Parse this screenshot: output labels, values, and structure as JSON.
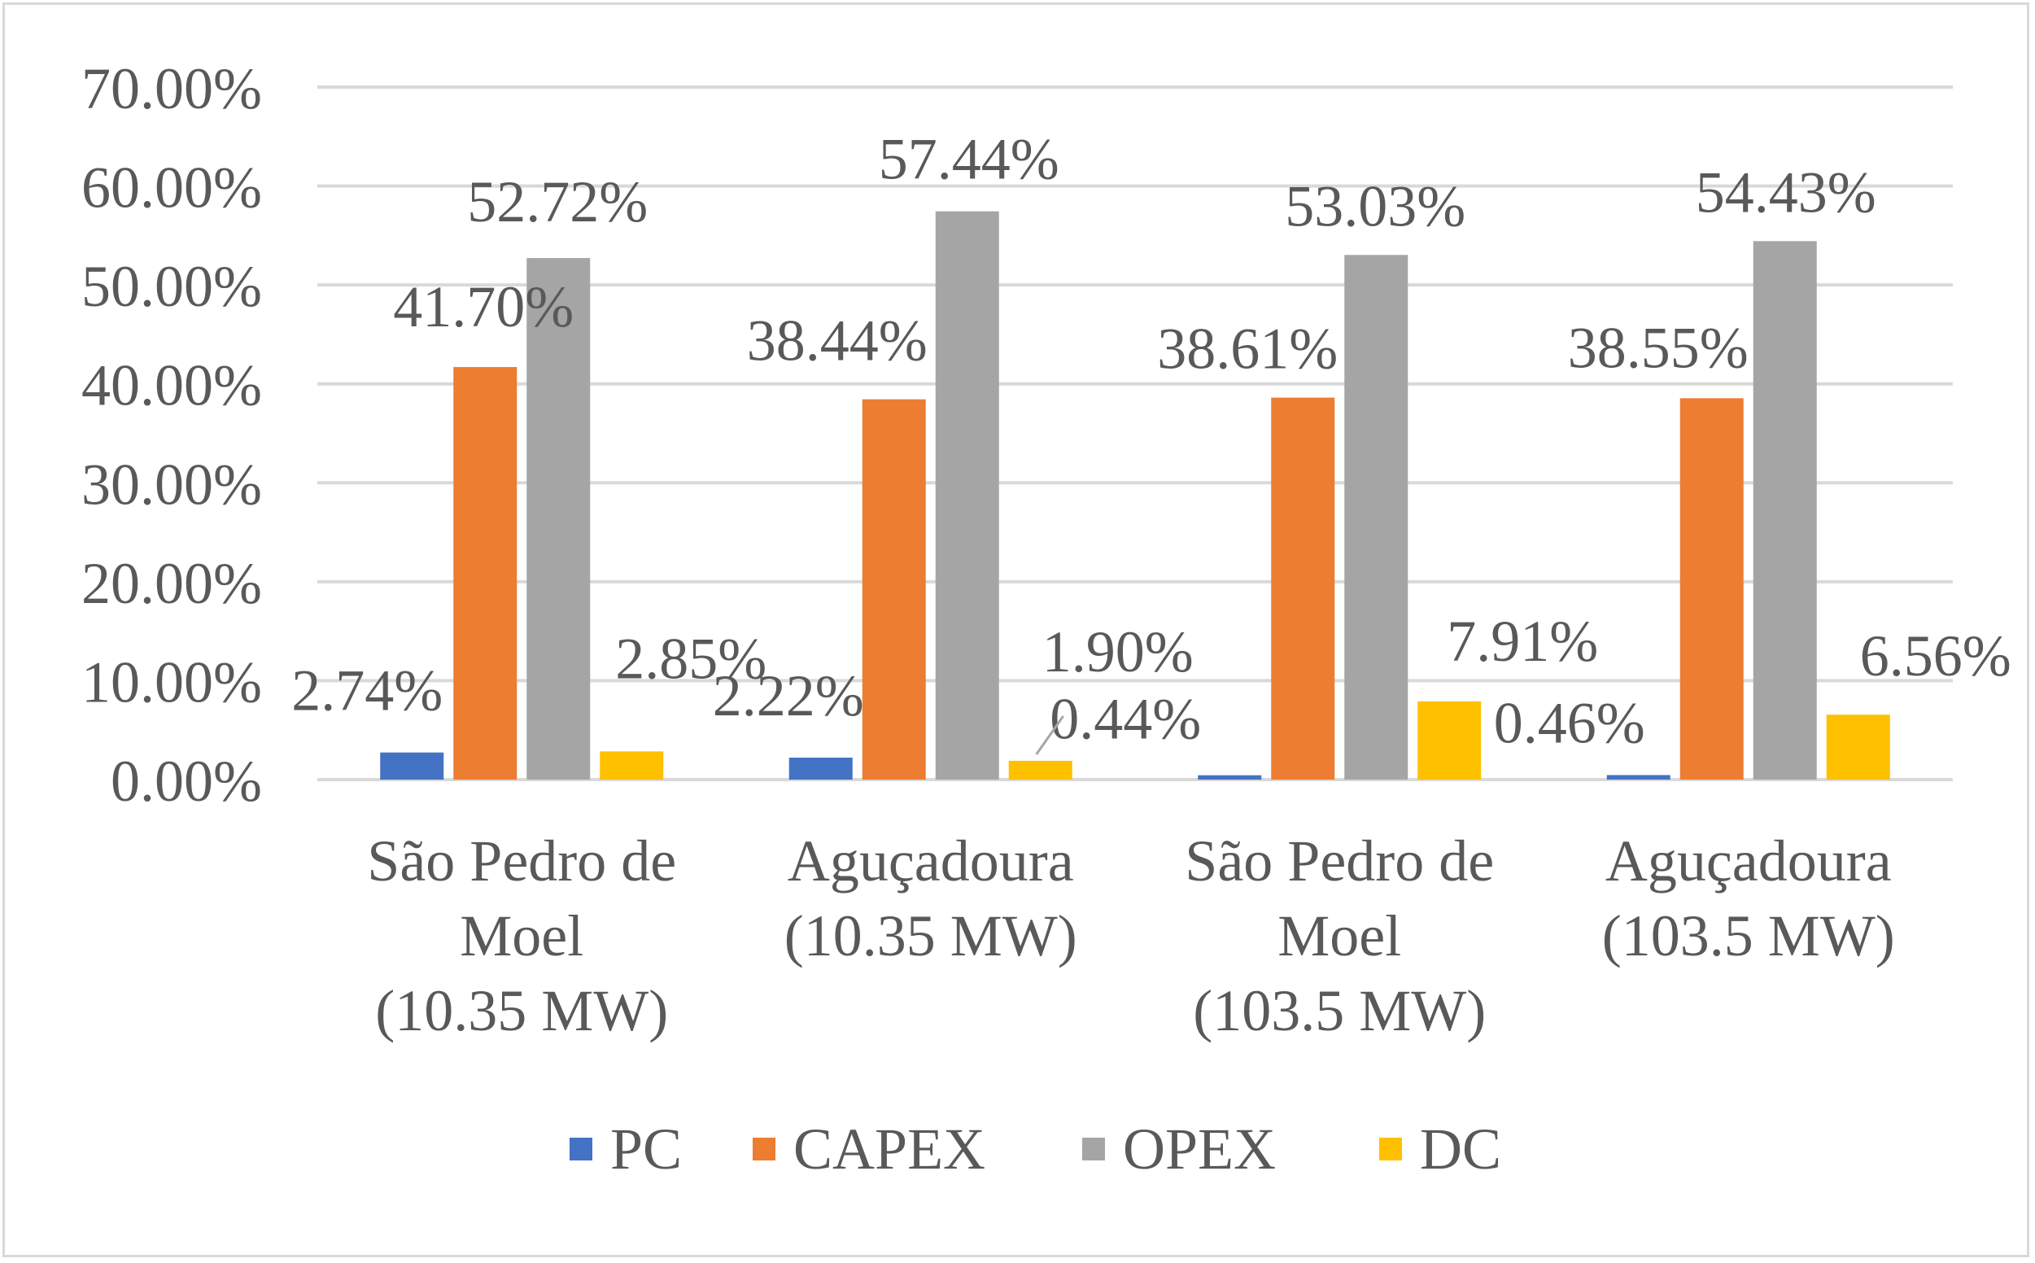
{
  "chart_data": {
    "type": "bar",
    "title": "",
    "xlabel": "",
    "ylabel": "",
    "ylim": [
      0,
      0.7
    ],
    "grid": true,
    "legend_position": "bottom",
    "y_ticks": [
      "0.00%",
      "10.00%",
      "20.00%",
      "30.00%",
      "40.00%",
      "50.00%",
      "60.00%",
      "70.00%"
    ],
    "categories": [
      [
        "São Pedro de",
        "Moel",
        "(10.35 MW)"
      ],
      [
        "Aguçadoura",
        "(10.35 MW)"
      ],
      [
        "São Pedro de",
        "Moel",
        "(103.5 MW)"
      ],
      [
        "Aguçadoura",
        "(103.5 MW)"
      ]
    ],
    "series": [
      {
        "name": "PC",
        "color": "#4472c4",
        "values": [
          0.0274,
          0.0222,
          0.0044,
          0.0046
        ],
        "labels": [
          "2.74%",
          "2.22%",
          "0.44%",
          "0.46%"
        ]
      },
      {
        "name": "CAPEX",
        "color": "#ed7d31",
        "values": [
          0.417,
          0.3844,
          0.3861,
          0.3855
        ],
        "labels": [
          "41.70%",
          "38.44%",
          "38.61%",
          "38.55%"
        ]
      },
      {
        "name": "OPEX",
        "color": "#a5a5a5",
        "values": [
          0.5272,
          0.5744,
          0.5303,
          0.5443
        ],
        "labels": [
          "52.72%",
          "57.44%",
          "53.03%",
          "54.43%"
        ]
      },
      {
        "name": "DC",
        "color": "#ffc000",
        "values": [
          0.0285,
          0.019,
          0.0791,
          0.0656
        ],
        "labels": [
          "2.85%",
          "1.90%",
          "7.91%",
          "6.56%"
        ]
      }
    ]
  }
}
